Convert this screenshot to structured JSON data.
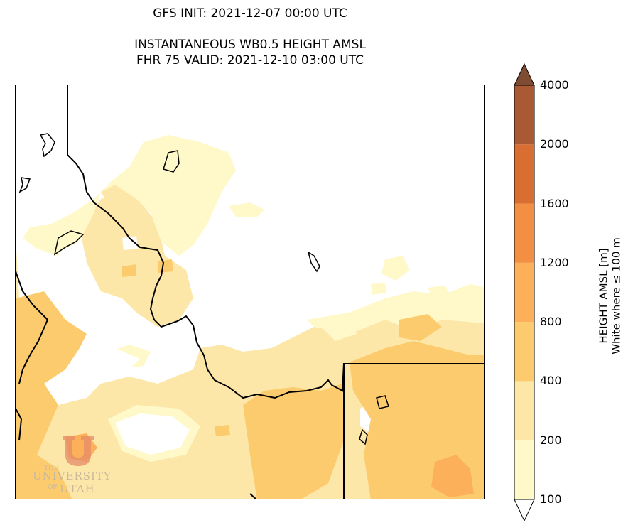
{
  "title": {
    "line1": "GFS INIT: 2021-12-07 00:00 UTC",
    "line2": "INSTANTANEOUS WB0.5 HEIGHT AMSL",
    "line3": "FHR 75 VALID: 2021-12-10 03:00 UTC"
  },
  "colorbar": {
    "label_line1": "HEIGHT AMSL [m]",
    "label_line2": "White where ≤ 100 m",
    "ticks": [
      "100",
      "200",
      "400",
      "800",
      "1200",
      "1600",
      "2000",
      "4000"
    ],
    "colors": [
      "#fff8c8",
      "#fde7a8",
      "#fccb6e",
      "#fdb05a",
      "#f28f42",
      "#d86e32",
      "#a95a34"
    ],
    "extend_over_color": "#7d4c33",
    "extend_under_color": "#ffffff"
  },
  "map": {
    "background": "#ffffff"
  },
  "logo": {
    "the": "THE",
    "university": "UNIVERSITY",
    "of": "OF",
    "utah": "UTAH"
  }
}
